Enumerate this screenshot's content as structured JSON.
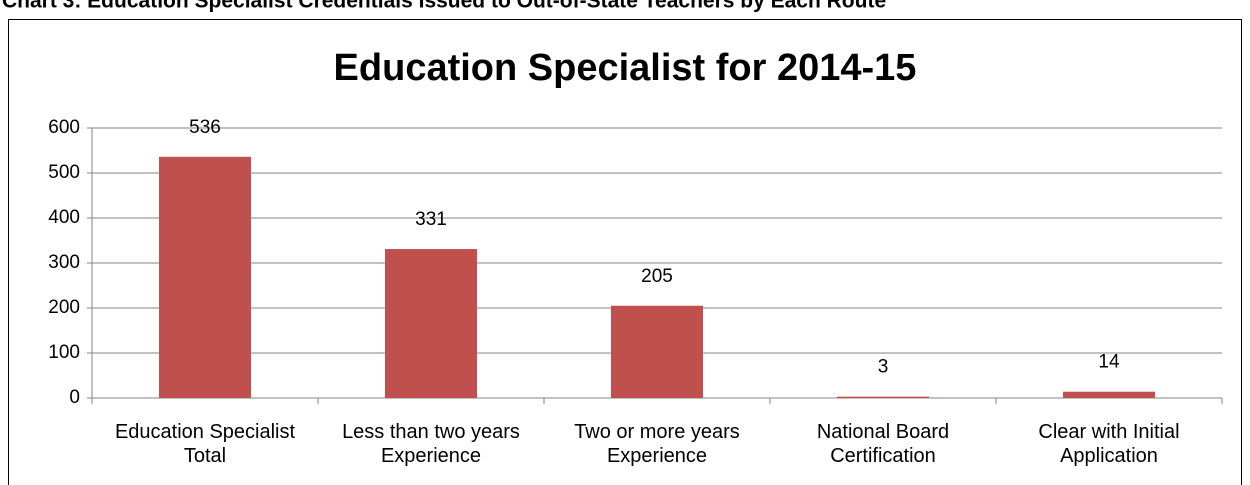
{
  "heading": "Chart 3: Education Specialist Credentials Issued to Out-of-State Teachers by Each Route",
  "chart_data": {
    "type": "bar",
    "title": "Education Specialist for 2014-15",
    "categories": [
      "Education Specialist Total",
      "Less than two years Experience",
      "Two or more years Experience",
      "National Board Certification",
      "Clear with Initial Application"
    ],
    "values": [
      536,
      331,
      205,
      3,
      14
    ],
    "color": "#c0504d",
    "ylim": [
      0,
      600
    ],
    "yticks": [
      0,
      100,
      200,
      300,
      400,
      500,
      600
    ],
    "grid": true
  }
}
